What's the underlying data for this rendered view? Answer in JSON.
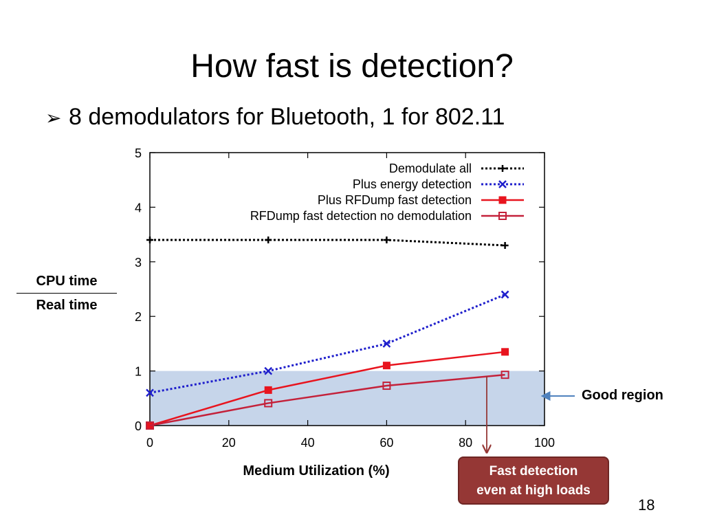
{
  "slide": {
    "title": "How fast is detection?",
    "bullet": "8 demodulators for Bluetooth, 1 for 802.11",
    "page_number": "18"
  },
  "labels": {
    "ylabel_numerator": "CPU time",
    "ylabel_denominator": "Real time",
    "xlabel": "Medium Utilization (%)",
    "good_region": "Good region",
    "callout_line1": "Fast detection",
    "callout_line2": "even at high loads"
  },
  "colors": {
    "good_region_fill": "#c6d5ea",
    "black": "#000000",
    "blue": "#1f1fcc",
    "red": "#e8141e",
    "dark_red": "#c4213a",
    "callout_fill": "#953735",
    "good_arrow": "#4f81bd"
  },
  "chart_data": {
    "type": "line",
    "xlabel": "Medium Utilization (%)",
    "ylabel": "CPU time / Real time",
    "xlim": [
      0,
      100
    ],
    "ylim": [
      0,
      5
    ],
    "x_ticks": [
      0,
      20,
      40,
      60,
      80,
      100
    ],
    "y_ticks": [
      0,
      1,
      2,
      3,
      4,
      5
    ],
    "grid": false,
    "legend_position": "top-right",
    "good_region": {
      "y_from": 0,
      "y_to": 1
    },
    "series": [
      {
        "name": "Demodulate all",
        "x": [
          0,
          30,
          60,
          90
        ],
        "y": [
          3.4,
          3.4,
          3.4,
          3.3
        ],
        "color": "#000000",
        "dash": "dotted",
        "marker": "plus"
      },
      {
        "name": "Plus energy detection",
        "x": [
          0,
          30,
          60,
          90
        ],
        "y": [
          0.6,
          1.0,
          1.5,
          2.4
        ],
        "color": "#1f1fcc",
        "dash": "dotted",
        "marker": "x"
      },
      {
        "name": "Plus RFDump fast detection",
        "x": [
          0,
          30,
          60,
          90
        ],
        "y": [
          0.0,
          0.65,
          1.1,
          1.35
        ],
        "color": "#e8141e",
        "dash": "solid",
        "marker": "filled-square"
      },
      {
        "name": "RFDump fast detection no demodulation",
        "x": [
          0,
          30,
          60,
          90
        ],
        "y": [
          0.0,
          0.41,
          0.73,
          0.93
        ],
        "color": "#c4213a",
        "dash": "solid",
        "marker": "open-square"
      }
    ]
  }
}
